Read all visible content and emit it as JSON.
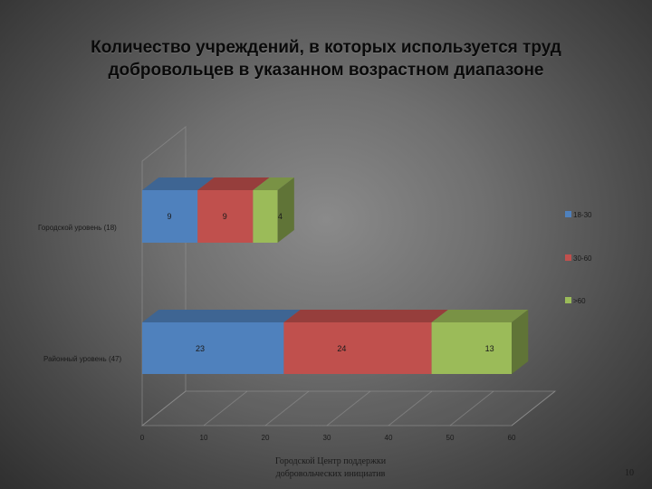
{
  "slide": {
    "title_line1": "Количество учреждений, в которых используется труд",
    "title_line2": "добровольцев в указанном возрастном диапазоне",
    "footer_line1": "Городской Центр поддержки",
    "footer_line2": "добровольческих инициатив",
    "page_number": "10"
  },
  "colors": {
    "series_18_30": "#4f81bd",
    "series_30_60": "#c0504d",
    "series_60_plus": "#9bbb59",
    "text": "#1a1a1a"
  },
  "chart_data": {
    "type": "bar",
    "orientation": "horizontal",
    "stacked": true,
    "three_d": true,
    "categories": [
      "Городской уровень (18)",
      "Районный уровень (47)"
    ],
    "series": [
      {
        "name": "18-30",
        "values": [
          9,
          23
        ]
      },
      {
        "name": "30-60",
        "values": [
          9,
          24
        ]
      },
      {
        "name": ">60",
        "values": [
          4,
          13
        ]
      }
    ],
    "xlim": [
      0,
      60
    ],
    "x_ticks": [
      "0",
      "10",
      "20",
      "30",
      "40",
      "50",
      "60"
    ],
    "legend_position": "right",
    "grid": true,
    "title": "",
    "xlabel": "",
    "ylabel": ""
  }
}
